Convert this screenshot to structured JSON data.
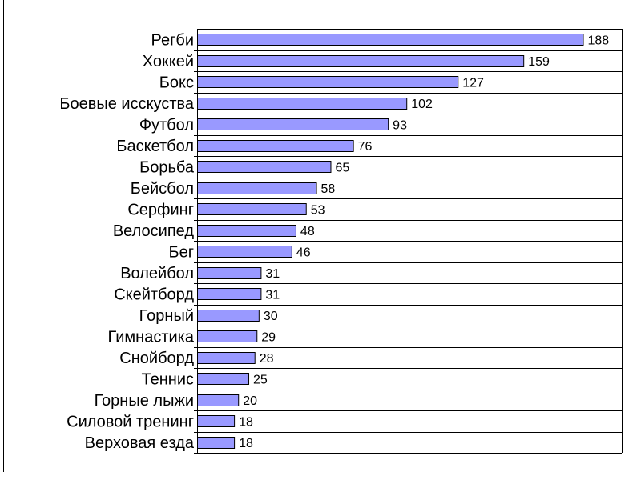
{
  "chart_data": {
    "type": "bar",
    "orientation": "horizontal",
    "categories": [
      "Регби",
      "Хоккей",
      "Бокс",
      "Боевые исскуства",
      "Футбол",
      "Баскетбол",
      "Борьба",
      "Бейсбол",
      "Серфинг",
      "Велосипед",
      "Бег",
      "Волейбол",
      "Скейтборд",
      "Горный",
      "Гимнастика",
      "Снойборд",
      "Теннис",
      "Горные лыжи",
      "Силовой тренинг",
      "Верховая езда"
    ],
    "values": [
      188,
      159,
      127,
      102,
      93,
      76,
      65,
      58,
      53,
      48,
      46,
      31,
      31,
      30,
      29,
      28,
      25,
      20,
      18,
      18
    ],
    "title": "",
    "xlabel": "",
    "ylabel": "",
    "xlim": [
      0,
      205
    ],
    "grid": "horizontal lines between categories",
    "legend": "none",
    "data_labels": true,
    "colors": {
      "bar_fill": "#9999ff",
      "bar_stroke": "#000000",
      "axis": "#000000",
      "background": "#ffffff"
    }
  }
}
